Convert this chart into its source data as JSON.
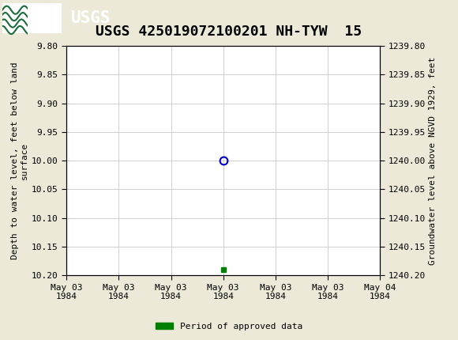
{
  "title": "USGS 425019072100201 NH-TYW  15",
  "background_color": "#ece9d8",
  "header_color": "#1a6b3c",
  "plot_bg": "#ffffff",
  "ylabel_left": "Depth to water level, feet below land\nsurface",
  "ylabel_right": "Groundwater level above NGVD 1929, feet",
  "ylim_left": [
    9.8,
    10.2
  ],
  "ylim_right": [
    1240.2,
    1239.8
  ],
  "yticks_left": [
    9.8,
    9.85,
    9.9,
    9.95,
    10.0,
    10.05,
    10.1,
    10.15,
    10.2
  ],
  "yticks_right": [
    1240.2,
    1240.15,
    1240.1,
    1240.05,
    1240.0,
    1239.95,
    1239.9,
    1239.85,
    1239.8
  ],
  "ytick_labels_right": [
    "1240.20",
    "1240.15",
    "1240.10",
    "1240.05",
    "1240.00",
    "1239.95",
    "1239.90",
    "1239.85",
    "1239.80"
  ],
  "data_point_x": 12.0,
  "data_point_y": 10.0,
  "green_square_x": 12.0,
  "green_square_y": 10.19,
  "circle_color": "#0000cc",
  "square_color": "#008000",
  "legend_label": "Period of approved data",
  "grid_color": "#d0d0d0",
  "font_family": "DejaVu Sans Mono",
  "title_fontsize": 13,
  "axis_fontsize": 8,
  "tick_fontsize": 8,
  "xtick_positions_hours": [
    0,
    4,
    8,
    12,
    16,
    20,
    24
  ],
  "xtick_labels": [
    "May 03\n1984",
    "May 03\n1984",
    "May 03\n1984",
    "May 03\n1984",
    "May 03\n1984",
    "May 03\n1984",
    "May 04\n1984"
  ]
}
